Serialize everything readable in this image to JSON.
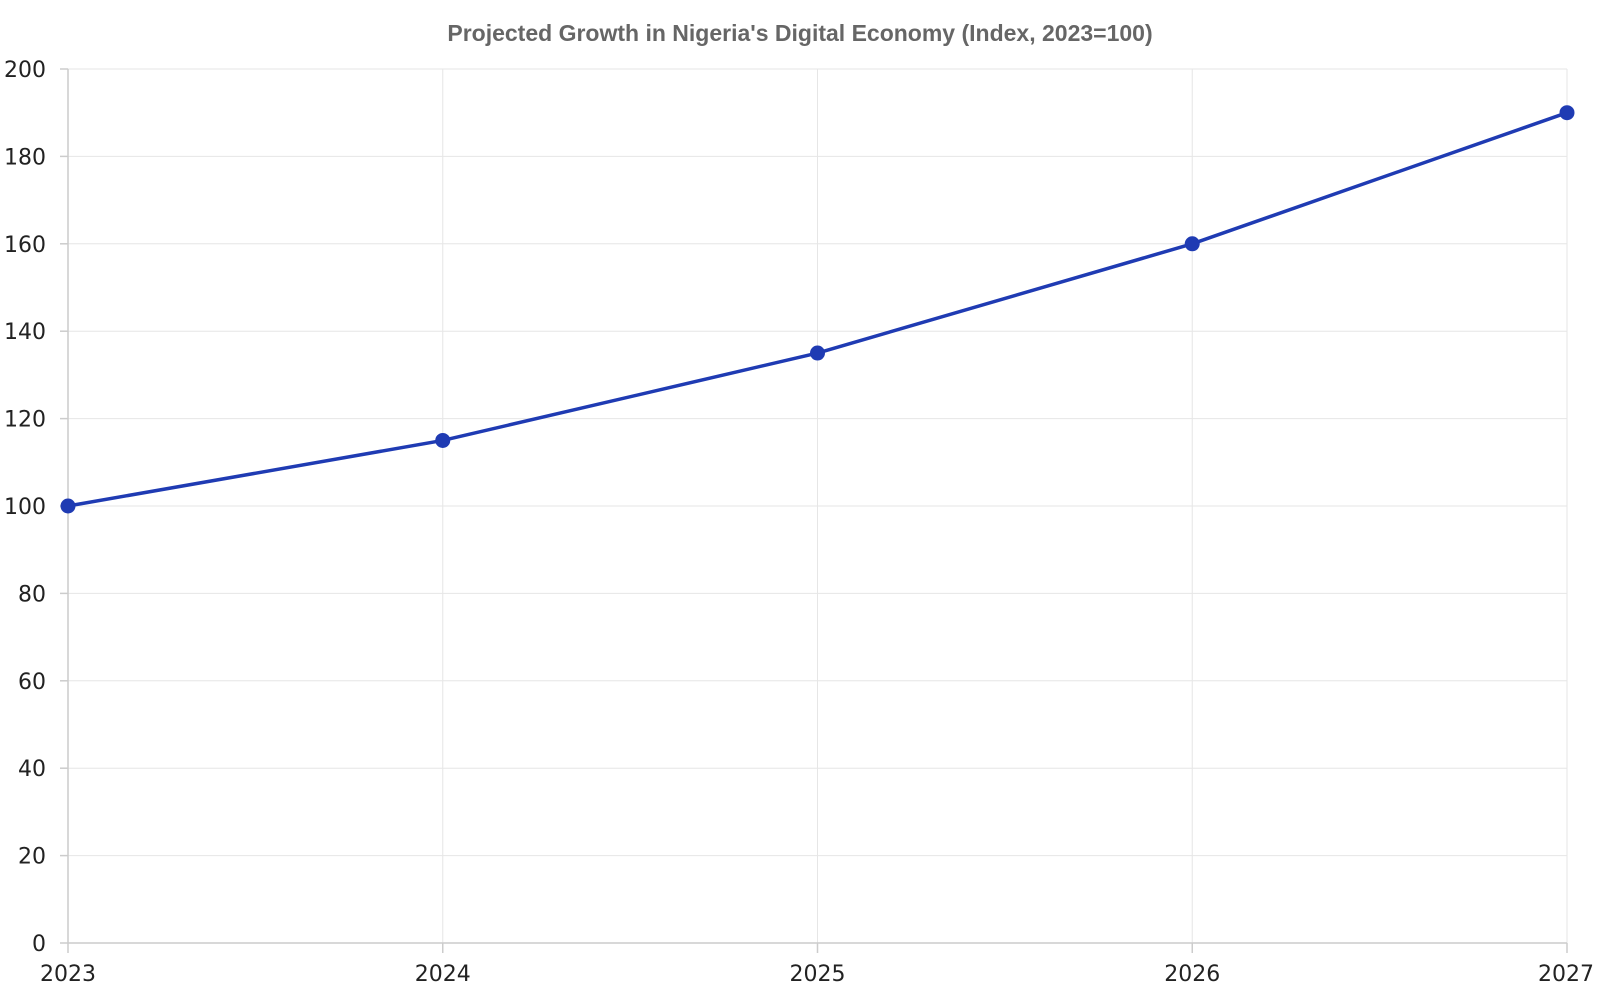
{
  "chart_data": {
    "type": "line",
    "title": "Projected Growth in Nigeria's Digital Economy (Index, 2023=100)",
    "xlabel": "",
    "ylabel": "",
    "categories": [
      "2023",
      "2024",
      "2025",
      "2026",
      "2027"
    ],
    "series": [
      {
        "values": [
          100,
          115,
          135,
          160,
          190
        ]
      }
    ],
    "ylim": [
      0,
      200
    ],
    "yticks": [
      0,
      20,
      40,
      60,
      80,
      100,
      120,
      140,
      160,
      180,
      200
    ],
    "grid": true,
    "legend": "none",
    "colors": {
      "line": "#1f3bb3",
      "title": "#666666",
      "grid": "#e6e6e6",
      "axis": "#cccccc",
      "tick_label": "#222222"
    }
  }
}
